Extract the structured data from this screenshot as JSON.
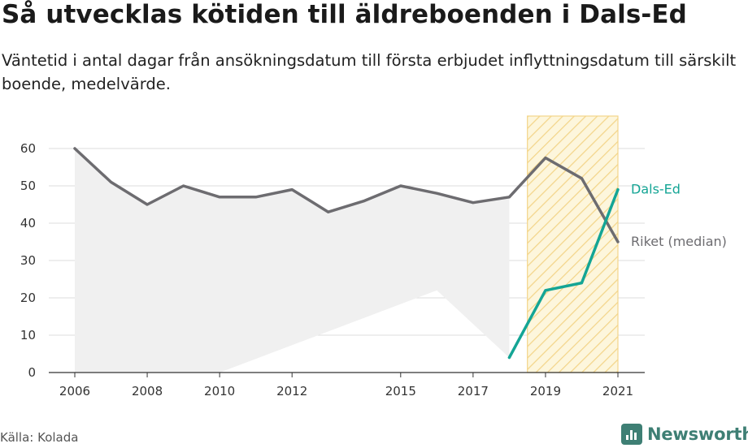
{
  "title": "Så utvecklas kötiden till äldreboenden i Dals-Ed",
  "subtitle": "Väntetid i antal dagar från ansökningsdatum till första erbjudet inflyttningsdatum till särskilt boende, medelvärde.",
  "source": "Källa: Kolada",
  "brand": {
    "name": "Newsworthy",
    "icon": "newsworthy-logo-icon",
    "color": "#3e7f74"
  },
  "chart_data": {
    "type": "line",
    "x_ticks": [
      2006,
      2008,
      2010,
      2012,
      2015,
      2017,
      2019,
      2021
    ],
    "y_ticks": [
      0,
      10,
      20,
      30,
      40,
      50,
      60
    ],
    "xlim": [
      2006,
      2021
    ],
    "ylim": [
      0,
      60
    ],
    "grid": true,
    "highlight_range": [
      2018.5,
      2021
    ],
    "series": [
      {
        "name": "Riket (median)",
        "color": "#6d6c70",
        "x": [
          2006,
          2007,
          2008,
          2009,
          2010,
          2011,
          2012,
          2013,
          2014,
          2015,
          2016,
          2017,
          2018,
          2019,
          2020,
          2021
        ],
        "values": [
          60,
          51,
          45,
          50,
          47,
          47,
          49,
          43,
          46,
          50,
          48,
          45.5,
          47,
          57.5,
          52,
          35
        ]
      },
      {
        "name": "Dals-Ed",
        "color": "#14a595",
        "x": [
          2018,
          2019,
          2020,
          2021
        ],
        "values": [
          4,
          22,
          24,
          49
        ]
      }
    ],
    "background_area": {
      "color": "#f0f0f0",
      "x": [
        2006,
        2007,
        2008,
        2009,
        2010,
        2011,
        2012,
        2013,
        2014,
        2015,
        2016,
        2017,
        2018,
        2018,
        2016,
        2010,
        2006
      ],
      "values": [
        60,
        51,
        45,
        50,
        47,
        47,
        49,
        43,
        46,
        50,
        48,
        45.5,
        47,
        4,
        22,
        0,
        0
      ]
    }
  }
}
